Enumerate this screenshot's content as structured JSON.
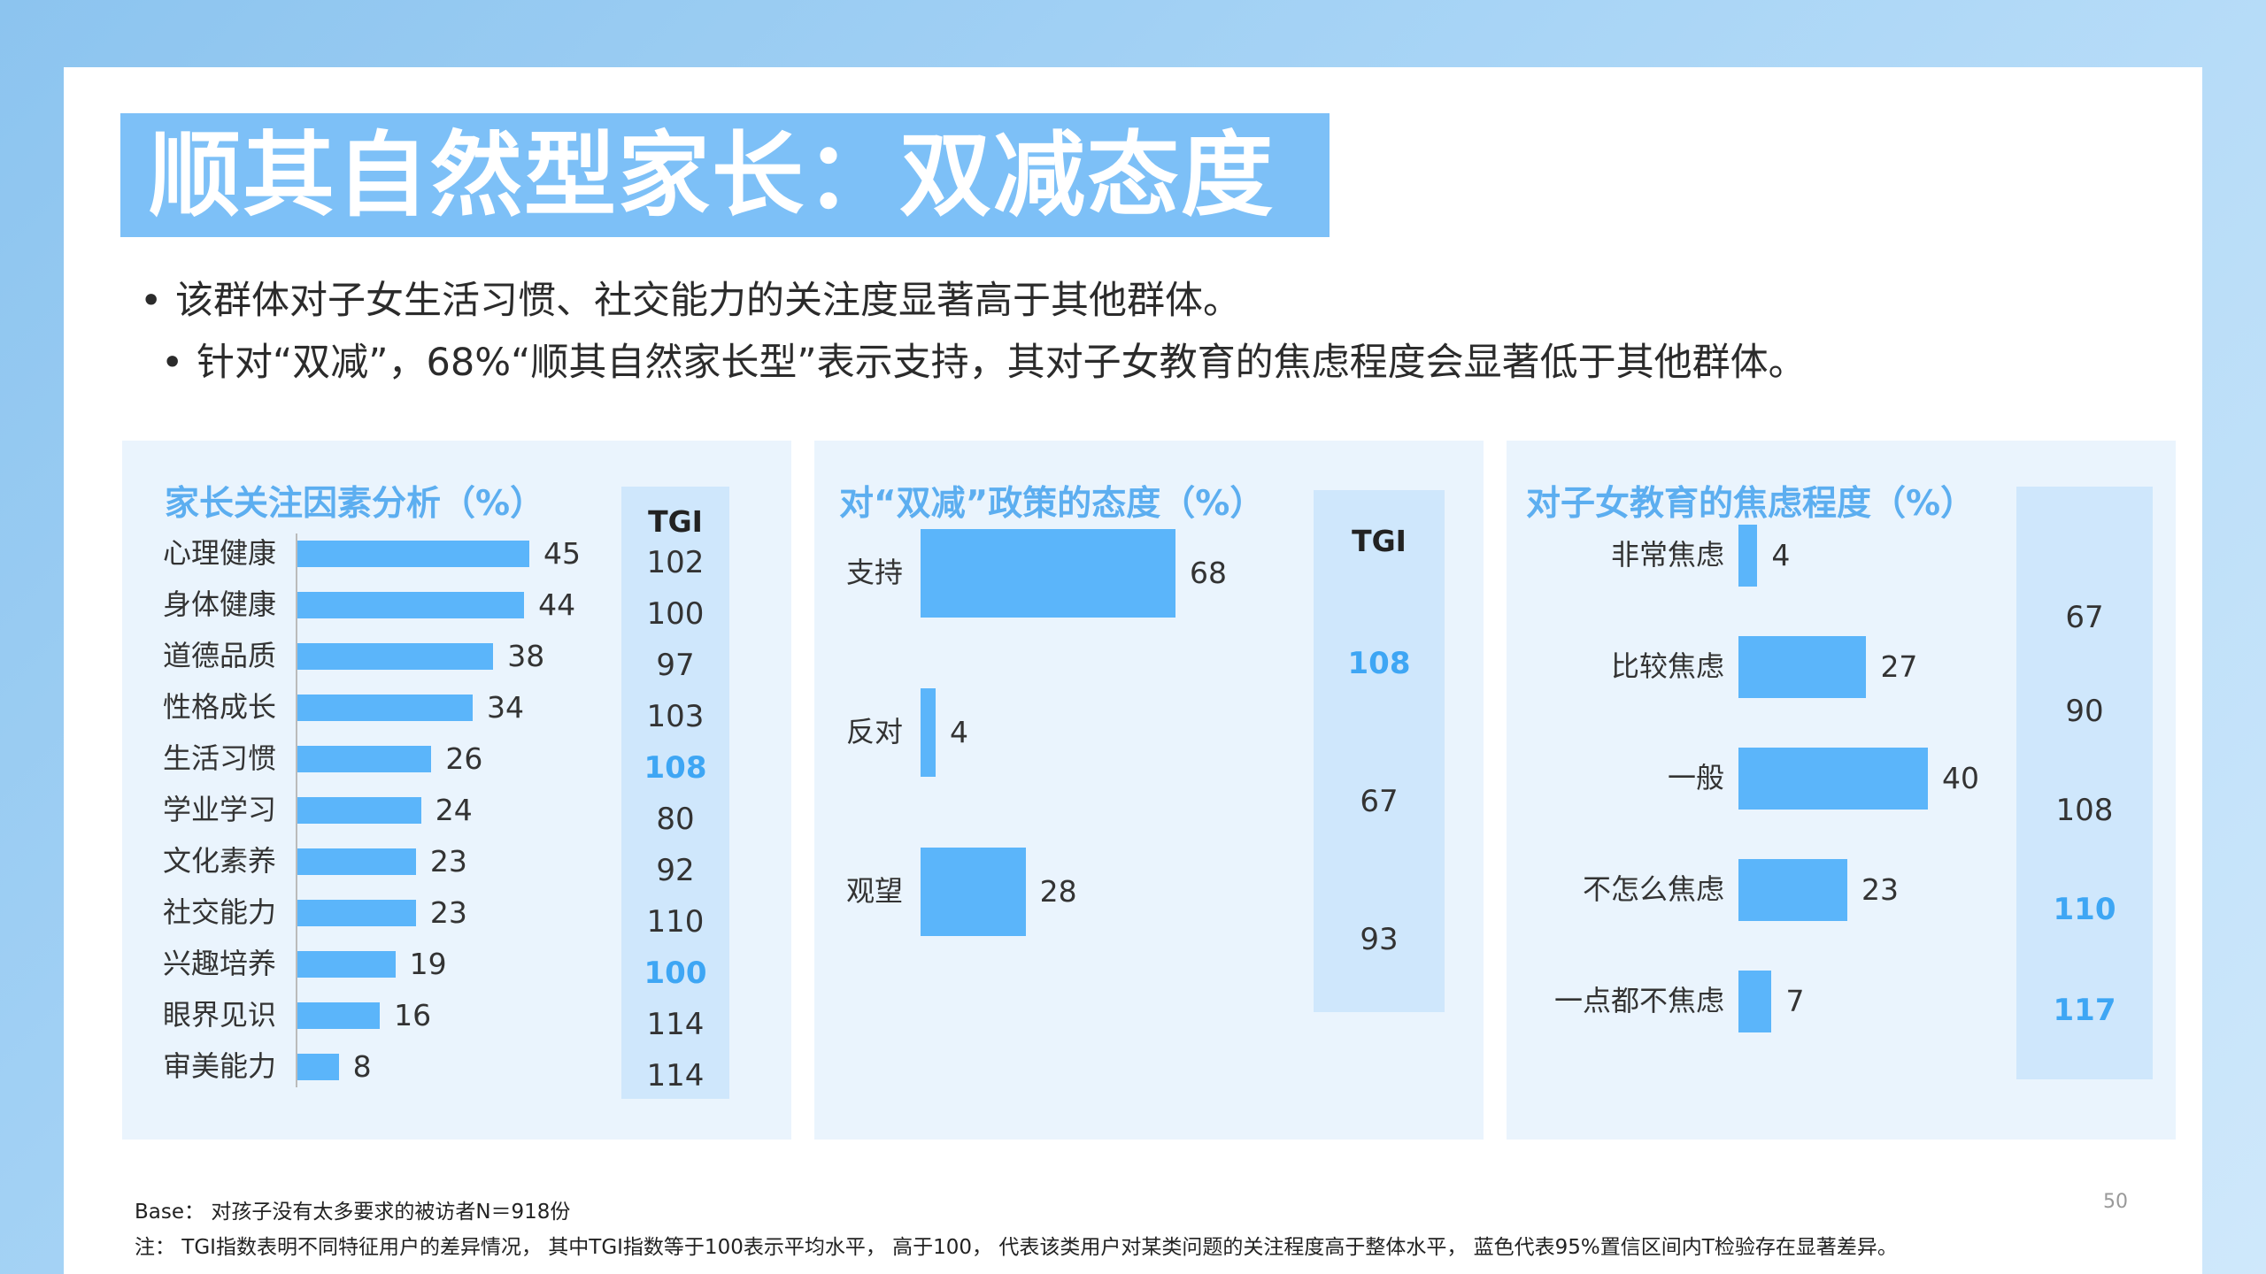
{
  "title": "顺其自然型家长：双减态度",
  "bullets": [
    "该群体对子女生活习惯、社交能力的关注度显著高于其他群体。",
    "针对“双减”，68%“顺其自然家长型”表示支持，其对子女教育的焦虑程度会显著低于其他群体。"
  ],
  "bullet_symbol": "•",
  "tgi_header": "TGI",
  "colors": {
    "bar": "#5bb5fa",
    "accent": "#5caef0",
    "significant": "#3ea6f4",
    "tgi_col": "#cfe7fc",
    "panel": "#eaf4fd"
  },
  "chart_data": [
    {
      "type": "bar",
      "orientation": "horizontal",
      "title": "家长关注因素分析（%）",
      "categories": [
        "心理健康",
        "身体健康",
        "道德品质",
        "性格成长",
        "生活习惯",
        "学业学习",
        "文化素养",
        "社交能力",
        "兴趣培养",
        "眼界见识",
        "审美能力"
      ],
      "values": [
        45,
        44,
        38,
        34,
        26,
        24,
        23,
        23,
        19,
        16,
        8
      ],
      "tgi": [
        102,
        100,
        97,
        103,
        108,
        80,
        92,
        110,
        100,
        114,
        114
      ],
      "tgi_significant": [
        false,
        false,
        false,
        false,
        true,
        false,
        false,
        false,
        true,
        false,
        false
      ],
      "xlim": [
        0,
        45
      ]
    },
    {
      "type": "bar",
      "orientation": "horizontal",
      "title": "对“双减”政策的态度（%）",
      "categories": [
        "支持",
        "反对",
        "观望"
      ],
      "values": [
        68,
        4,
        28
      ],
      "tgi": [
        108,
        67,
        93
      ],
      "tgi_significant": [
        true,
        false,
        false
      ],
      "xlim": [
        0,
        68
      ]
    },
    {
      "type": "bar",
      "orientation": "horizontal",
      "title": "对子女教育的焦虑程度（%）",
      "categories": [
        "非常焦虑",
        "比较焦虑",
        "一般",
        "不怎么焦虑",
        "一点都不焦虑"
      ],
      "values": [
        4,
        27,
        40,
        23,
        7
      ],
      "tgi": [
        67,
        90,
        108,
        110,
        117
      ],
      "tgi_significant": [
        false,
        false,
        false,
        true,
        true
      ],
      "xlim": [
        0,
        40
      ]
    }
  ],
  "footer": {
    "base": "Base： 对孩子没有太多要求的被访者N＝918份",
    "note": "注： TGI指数表明不同特征用户的差异情况， 其中TGI指数等于100表示平均水平， 高于100， 代表该类用户对某类问题的关注程度高于整体水平， 蓝色代表95%置信区间内T检验存在显著差异。",
    "page": "50"
  }
}
